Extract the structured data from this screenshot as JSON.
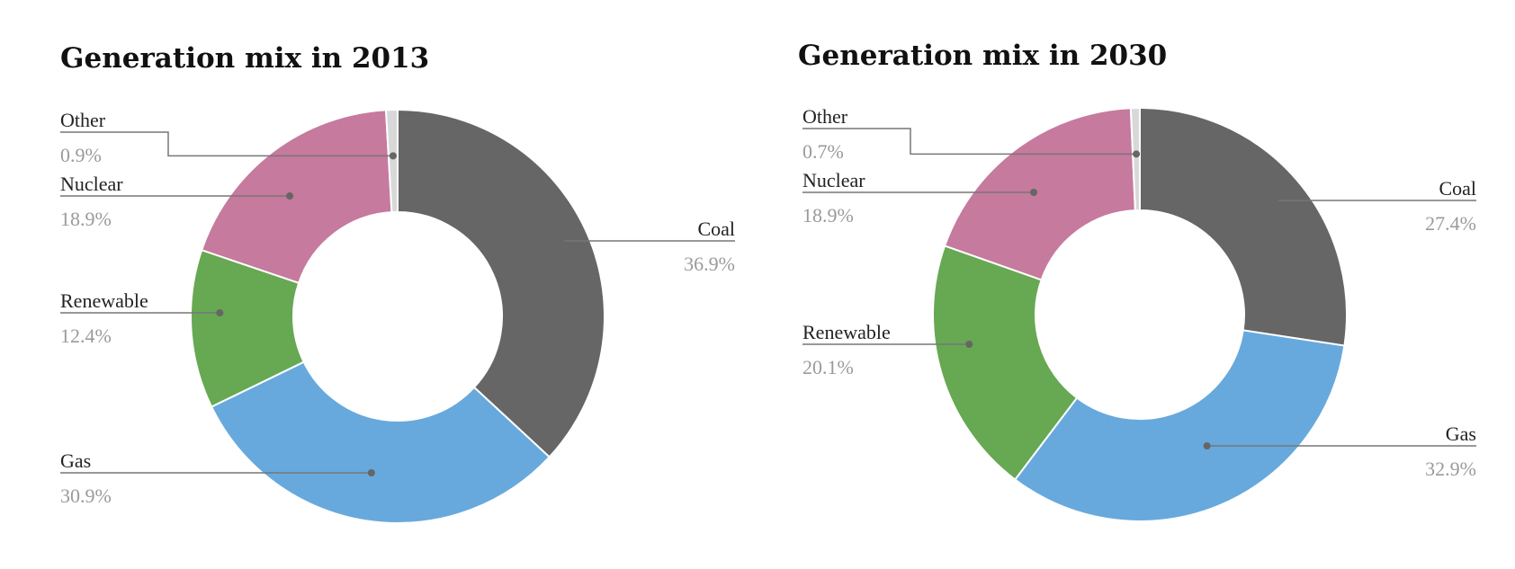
{
  "chart_data": [
    {
      "type": "pie",
      "title": "Generation mix in 2013",
      "slices": [
        {
          "label": "Coal",
          "value": 36.9,
          "display": "36.9%",
          "color": "#666666"
        },
        {
          "label": "Gas",
          "value": 30.9,
          "display": "30.9%",
          "color": "#67a9dc"
        },
        {
          "label": "Renewable",
          "value": 12.4,
          "display": "12.4%",
          "color": "#67a853"
        },
        {
          "label": "Nuclear",
          "value": 18.9,
          "display": "18.9%",
          "color": "#c67a9d"
        },
        {
          "label": "Other",
          "value": 0.9,
          "display": "0.9%",
          "color": "#d8d8d8"
        }
      ]
    },
    {
      "type": "pie",
      "title": "Generation mix in 2030",
      "slices": [
        {
          "label": "Coal",
          "value": 27.4,
          "display": "27.4%",
          "color": "#666666"
        },
        {
          "label": "Gas",
          "value": 32.9,
          "display": "32.9%",
          "color": "#67a9dc"
        },
        {
          "label": "Renewable",
          "value": 20.1,
          "display": "20.1%",
          "color": "#67a853"
        },
        {
          "label": "Nuclear",
          "value": 18.9,
          "display": "18.9%",
          "color": "#c67a9d"
        },
        {
          "label": "Other",
          "value": 0.7,
          "display": "0.7%",
          "color": "#d8d8d8"
        }
      ]
    }
  ]
}
